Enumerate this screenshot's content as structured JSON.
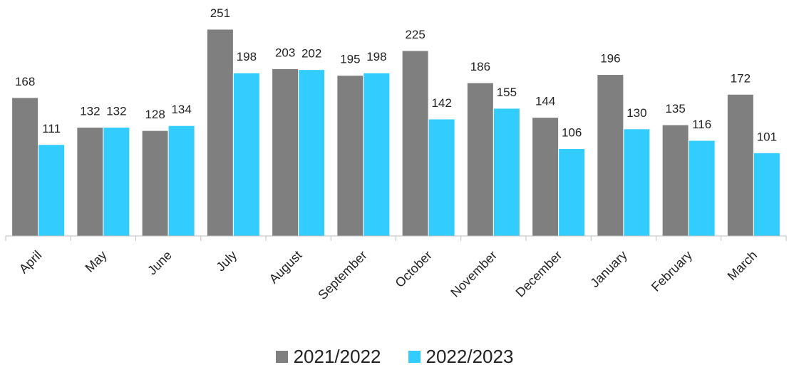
{
  "chart_data": {
    "type": "bar",
    "categories": [
      "April",
      "May",
      "June",
      "July",
      "August",
      "September",
      "October",
      "November",
      "December",
      "January",
      "February",
      "March"
    ],
    "series": [
      {
        "name": "2021/2022",
        "color": "#7f7f7f",
        "values": [
          168,
          132,
          128,
          251,
          203,
          195,
          225,
          186,
          144,
          196,
          135,
          172
        ]
      },
      {
        "name": "2022/2023",
        "color": "#33ccff",
        "values": [
          111,
          132,
          134,
          198,
          202,
          198,
          142,
          155,
          106,
          130,
          116,
          101
        ]
      }
    ],
    "ylim": [
      0,
      251
    ],
    "legend_position": "bottom",
    "grid": false
  }
}
